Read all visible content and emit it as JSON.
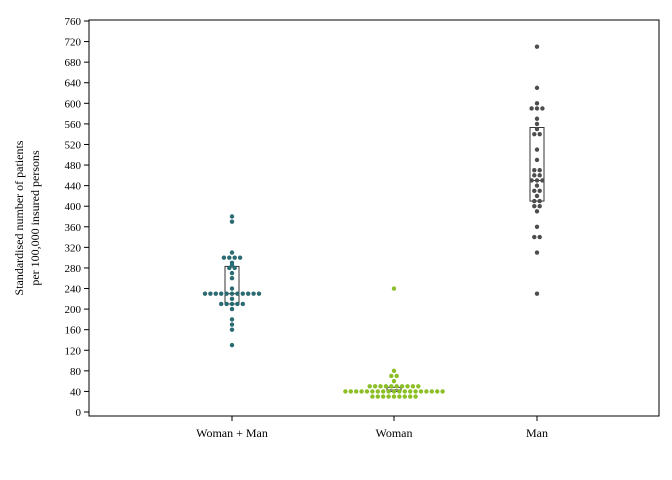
{
  "chart_data": {
    "type": "scatter",
    "subtype": "beeswarm-with-boxplot",
    "title": "",
    "xlabel": "",
    "ylabel_lines": [
      "Standardised number of patients",
      "per 100,000 insured persons"
    ],
    "ylim": [
      0,
      770
    ],
    "yticks": [
      0,
      40,
      80,
      120,
      160,
      200,
      240,
      280,
      320,
      360,
      400,
      440,
      480,
      520,
      560,
      600,
      640,
      680,
      720,
      760
    ],
    "grid": false,
    "legend": "none",
    "categories": [
      "Woman + Man",
      "Woman",
      "Man"
    ],
    "series": [
      {
        "category": "Woman + Man",
        "color": "#2a6b72",
        "box": {
          "q1": 210,
          "median": 230,
          "q3": 283
        },
        "values": [
          380,
          370,
          310,
          300,
          300,
          300,
          300,
          290,
          285,
          280,
          280,
          270,
          260,
          240,
          230,
          230,
          230,
          230,
          230,
          230,
          230,
          230,
          230,
          230,
          230,
          220,
          210,
          210,
          210,
          210,
          210,
          200,
          180,
          170,
          160,
          130
        ]
      },
      {
        "category": "Woman",
        "color": "#8cbf26",
        "box": {
          "q1": 40,
          "median": 43,
          "q3": 48
        },
        "values": [
          240,
          80,
          70,
          70,
          60,
          50,
          50,
          50,
          50,
          50,
          50,
          50,
          50,
          50,
          50,
          40,
          40,
          40,
          40,
          40,
          40,
          40,
          40,
          40,
          40,
          40,
          40,
          40,
          40,
          40,
          40,
          40,
          40,
          40,
          30,
          30,
          30,
          30,
          30,
          30,
          30,
          30,
          30
        ]
      },
      {
        "category": "Man",
        "color": "#4d4d4d",
        "box": {
          "q1": 410,
          "median": 450,
          "q3": 553
        },
        "values": [
          710,
          630,
          600,
          590,
          590,
          590,
          570,
          560,
          550,
          540,
          540,
          510,
          490,
          470,
          470,
          460,
          460,
          450,
          450,
          450,
          440,
          430,
          430,
          420,
          410,
          410,
          400,
          400,
          390,
          360,
          340,
          340,
          310,
          230
        ]
      }
    ]
  }
}
